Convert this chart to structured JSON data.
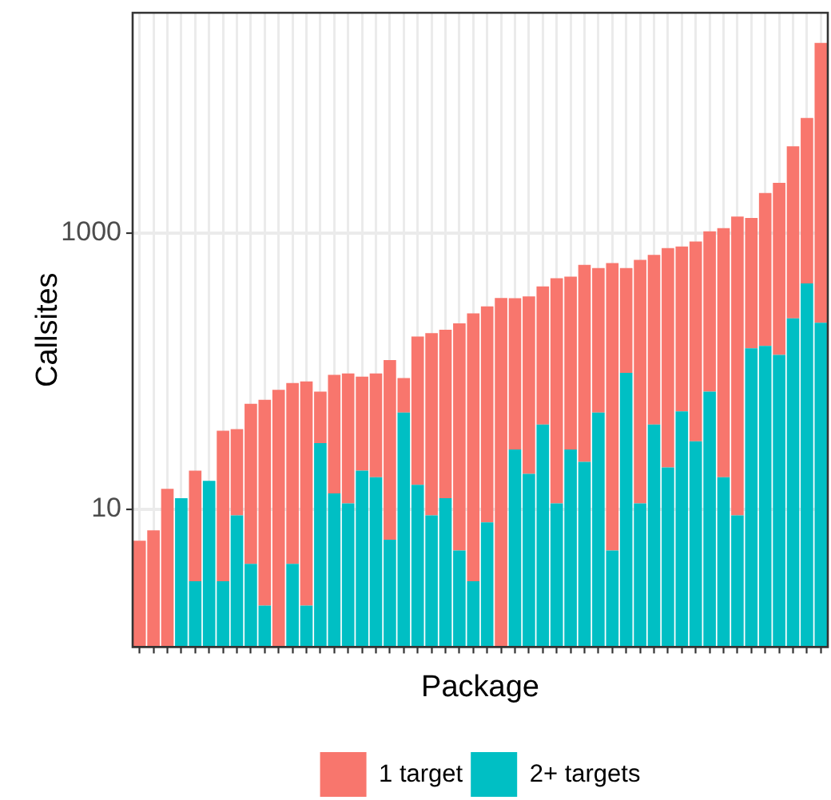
{
  "chart_data": {
    "type": "bar",
    "xlabel": "Package",
    "ylabel": "Callsites",
    "categories": [
      null,
      null,
      null,
      null,
      null,
      null,
      null,
      null,
      null,
      null,
      null,
      null,
      null,
      null,
      null,
      null,
      null,
      null,
      null,
      null,
      null,
      null,
      null,
      null,
      null,
      null,
      null,
      null,
      null,
      null,
      null,
      null,
      null,
      null,
      null,
      null,
      null,
      null,
      null,
      null,
      null,
      null,
      null,
      null,
      null,
      null,
      null,
      null,
      null,
      null
    ],
    "series": [
      {
        "name": "2+ targets",
        "color": "#00bfc4",
        "values": [
          null,
          null,
          null,
          12,
          3,
          16,
          3,
          9,
          4,
          2,
          null,
          4,
          2,
          30,
          13,
          11,
          19,
          17,
          6,
          50,
          15,
          9,
          12,
          5,
          3,
          8,
          null,
          27,
          18,
          41,
          11,
          27,
          22,
          50,
          5,
          97,
          11,
          41,
          20,
          51,
          31,
          71,
          17,
          9,
          146,
          152,
          131,
          241,
          431,
          224
        ]
      },
      {
        "name": "1 target",
        "color": "#f8766d",
        "values": [
          5.9,
          7,
          14,
          null,
          16,
          null,
          34,
          29,
          54,
          60,
          73,
          78,
          82,
          41,
          81,
          85,
          72,
          79,
          114,
          39,
          163,
          179,
          187,
          217,
          259,
          286,
          338,
          310,
          329,
          369,
          460,
          457,
          567,
          507,
          601,
          460,
          629,
          655,
          758,
          749,
          839,
          958,
          1070,
          1310,
          1140,
          1800,
          2180,
          4020,
          6400,
          23700
        ]
      }
    ],
    "stacked": true,
    "log": true,
    "ylim": [
      1,
      39500
    ],
    "yticks": [
      10,
      1000
    ],
    "grid": true,
    "legend": "bottom",
    "tick_labels": "y"
  }
}
